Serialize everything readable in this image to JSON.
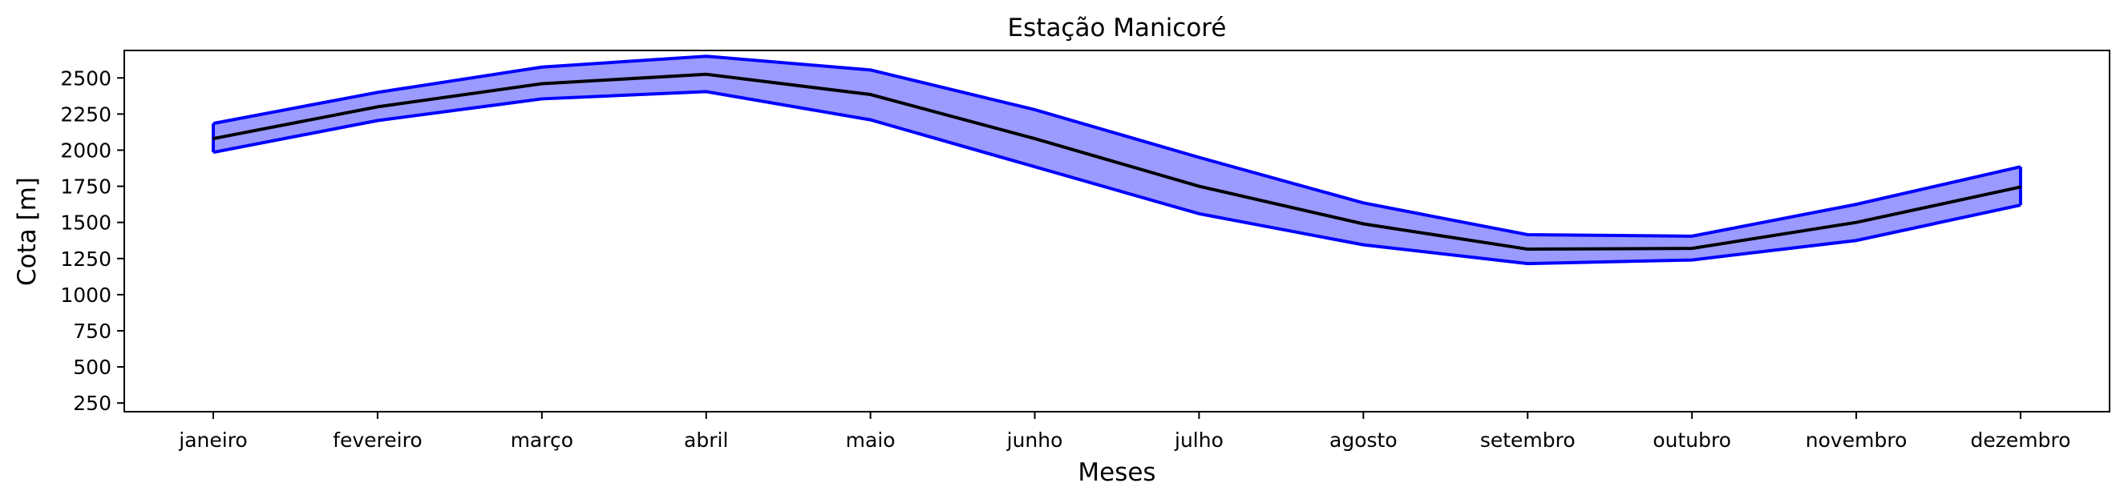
{
  "chart_data": {
    "type": "area",
    "title": "Estação Manicoré",
    "xlabel": "Meses",
    "ylabel": "Cota [m]",
    "categories": [
      "janeiro",
      "fevereiro",
      "março",
      "abril",
      "maio",
      "junho",
      "julho",
      "agosto",
      "setembro",
      "outubro",
      "novembro",
      "dezembro"
    ],
    "ylim": [
      190,
      2690
    ],
    "yticks": [
      250,
      500,
      750,
      1000,
      1250,
      1500,
      1750,
      2000,
      2250,
      2500
    ],
    "series": [
      {
        "role": "band_upper",
        "values": [
          2185,
          2400,
          2575,
          2650,
          2555,
          2280,
          1950,
          1635,
          1415,
          1405,
          1625,
          1885
        ]
      },
      {
        "role": "band_lower",
        "values": [
          1985,
          2205,
          2355,
          2405,
          2210,
          1885,
          1560,
          1345,
          1215,
          1240,
          1375,
          1620
        ]
      },
      {
        "role": "mean",
        "values": [
          2080,
          2300,
          2460,
          2525,
          2385,
          2080,
          1750,
          1490,
          1315,
          1320,
          1500,
          1745
        ]
      }
    ],
    "colors": {
      "band_fill": "#9a9aff",
      "band_edge": "#0000ff",
      "mean_line": "#000000"
    },
    "grid": false,
    "legend": "none"
  }
}
